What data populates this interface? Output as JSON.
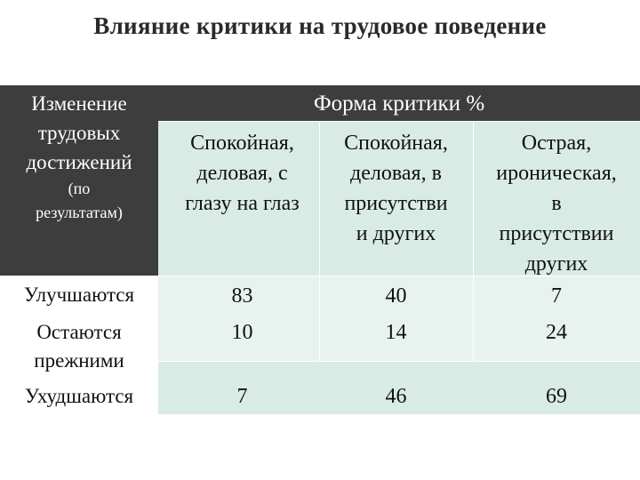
{
  "title": "Влияние критики на трудовое поведение",
  "table": {
    "corner_header": {
      "line1": "Изменение",
      "line2": "трудовых",
      "line3": "достижений",
      "line4": "(по",
      "line5": "результатам)"
    },
    "group_header": "Форма критики %",
    "columns": [
      [
        "Спокойная,",
        "деловая, с",
        "глазу на глаз"
      ],
      [
        "Спокойная,",
        "деловая, в",
        "присутстви",
        "и других"
      ],
      [
        "Острая,",
        "ироническая,",
        "в",
        "присутствии",
        "других"
      ]
    ],
    "rows": [
      {
        "label": [
          "Улучшаются"
        ],
        "values": [
          "83",
          "40",
          "7"
        ]
      },
      {
        "label": [
          "Остаются",
          "прежними"
        ],
        "values": [
          "10",
          "14",
          "24"
        ]
      },
      {
        "label": [
          "Ухудшаются"
        ],
        "values": [
          "7",
          "46",
          "69"
        ]
      }
    ]
  }
}
